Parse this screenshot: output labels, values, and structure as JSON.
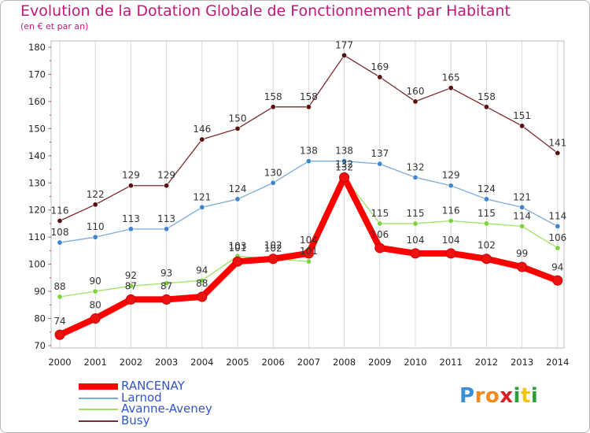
{
  "title": "Evolution de la Dotation Globale de Fonctionnement par Habitant",
  "subtitle": "(en € et par an)",
  "chart_data": {
    "type": "line",
    "x": [
      "2000",
      "2001",
      "2002",
      "2003",
      "2004",
      "2005",
      "2006",
      "2007",
      "2008",
      "2009",
      "2010",
      "2011",
      "2012",
      "2013",
      "2014"
    ],
    "ylim": [
      70,
      180
    ],
    "yticks": [
      70,
      80,
      90,
      100,
      110,
      120,
      130,
      140,
      150,
      160,
      170,
      180
    ],
    "grid": "vertical",
    "legend_position": "bottom-left",
    "series": [
      {
        "name": "RANCENAY",
        "color": "#ff0000",
        "point_color": "#ee1111",
        "width": 8,
        "radius": 6,
        "values": [
          74,
          80,
          87,
          87,
          88,
          101,
          102,
          104,
          132,
          106,
          104,
          104,
          102,
          99,
          94
        ],
        "labels": [
          "74",
          "80",
          "87",
          "87",
          "88",
          "101",
          "102",
          "104",
          "132",
          "106",
          "104",
          "104",
          "102",
          "99",
          "94"
        ]
      },
      {
        "name": "Larnod",
        "color": "#7aaad6",
        "point_color": "#3f86cc",
        "width": 1.3,
        "radius": 3.2,
        "values": [
          108,
          110,
          113,
          113,
          121,
          124,
          130,
          138,
          138,
          137,
          132,
          129,
          124,
          121,
          114
        ],
        "labels": [
          "108",
          "110",
          "113",
          "113",
          "121",
          "124",
          "130",
          "138",
          "138",
          "137",
          "132",
          "129",
          "124",
          "121",
          "114"
        ]
      },
      {
        "name": "Avanne-Aveney",
        "color": "#9ee065",
        "point_color": "#7ed23e",
        "width": 1.3,
        "radius": 3.2,
        "values": [
          88,
          90,
          92,
          93,
          94,
          103,
          102,
          101,
          132,
          115,
          115,
          116,
          115,
          114,
          106
        ],
        "labels": [
          "88",
          "90",
          "92",
          "93",
          "94",
          "103",
          "102",
          "101",
          "132",
          "115",
          "115",
          "116",
          "115",
          "114",
          "106"
        ]
      },
      {
        "name": "Busy",
        "color": "#7a2a2a",
        "point_color": "#5a1010",
        "width": 1.3,
        "radius": 3.2,
        "values": [
          116,
          122,
          129,
          129,
          146,
          150,
          158,
          158,
          177,
          169,
          160,
          165,
          158,
          151,
          141
        ],
        "labels": [
          "116",
          "122",
          "129",
          "129",
          "146",
          "150",
          "158",
          "158",
          "177",
          "169",
          "160",
          "165",
          "158",
          "151",
          "141"
        ]
      }
    ]
  },
  "legend": [
    {
      "label": "RANCENAY",
      "color": "#ff0000"
    },
    {
      "label": "Larnod",
      "color": "#7aaad6"
    },
    {
      "label": "Avanne-Aveney",
      "color": "#9ee065"
    },
    {
      "label": "Busy",
      "color": "#7a2a2a"
    }
  ],
  "logo": {
    "letters": [
      "P",
      "r",
      "o",
      "x",
      "i",
      "t",
      "i"
    ],
    "colors": [
      "#3a8fd6",
      "#f08a1c",
      "#f08a1c",
      "#d91f26",
      "#2e9e3a",
      "#f0c419",
      "#2e9e3a"
    ]
  }
}
